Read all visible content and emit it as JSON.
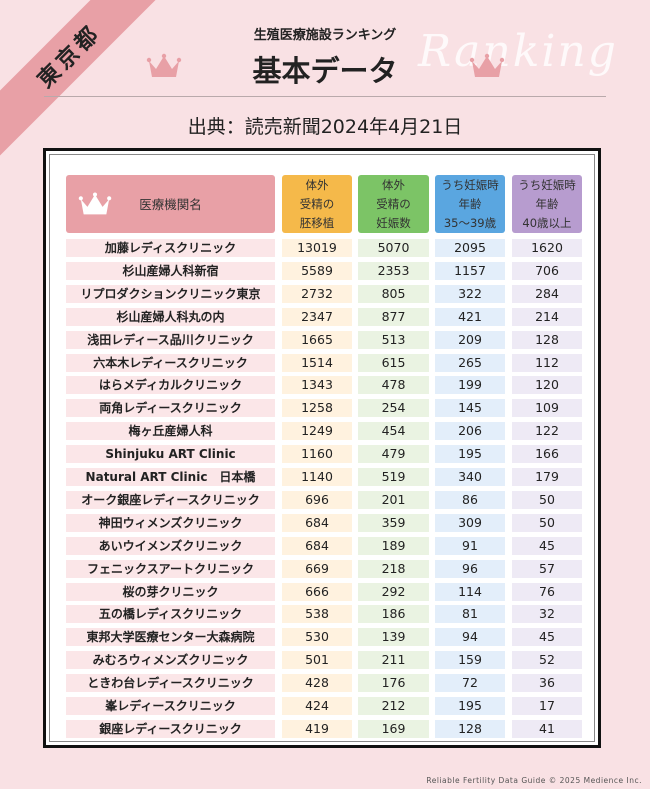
{
  "region_badge": "東京都",
  "watermark": "Ranking",
  "header": {
    "subtitle": "生殖医療施設ランキング",
    "title": "基本データ",
    "source": "出典：読売新聞2024年4月21日"
  },
  "colors": {
    "background": "#f9e1e4",
    "accent_pink": "#e8a0a6",
    "col1": "#f5b94a",
    "col2": "#7cc466",
    "col3": "#5aa6e0",
    "col4": "#b79ccf"
  },
  "table": {
    "columns": [
      {
        "label": "医療機関名",
        "icon": "crown-icon"
      },
      {
        "label": "体外\n受精の\n胚移植"
      },
      {
        "label": "体外\n受精の\n妊娠数"
      },
      {
        "label": "うち妊娠時\n年齢\n35～39歳"
      },
      {
        "label": "うち妊娠時\n年齢\n40歳以上"
      }
    ],
    "rows": [
      [
        "加藤レディスクリニック",
        "13019",
        "5070",
        "2095",
        "1620"
      ],
      [
        "杉山産婦人科新宿",
        "5589",
        "2353",
        "1157",
        "706"
      ],
      [
        "リプロダクションクリニック東京",
        "2732",
        "805",
        "322",
        "284"
      ],
      [
        "杉山産婦人科丸の内",
        "2347",
        "877",
        "421",
        "214"
      ],
      [
        "浅田レディース品川クリニック",
        "1665",
        "513",
        "209",
        "128"
      ],
      [
        "六本木レディースクリニック",
        "1514",
        "615",
        "265",
        "112"
      ],
      [
        "はらメディカルクリニック",
        "1343",
        "478",
        "199",
        "120"
      ],
      [
        "両角レディースクリニック",
        "1258",
        "254",
        "145",
        "109"
      ],
      [
        "梅ヶ丘産婦人科",
        "1249",
        "454",
        "206",
        "122"
      ],
      [
        "Shinjuku ART Clinic",
        "1160",
        "479",
        "195",
        "166"
      ],
      [
        "Natural ART Clinic　日本橋",
        "1140",
        "519",
        "340",
        "179"
      ],
      [
        "オーク銀座レディースクリニック",
        "696",
        "201",
        "86",
        "50"
      ],
      [
        "神田ウィメンズクリニック",
        "684",
        "359",
        "309",
        "50"
      ],
      [
        "あいウイメンズクリニック",
        "684",
        "189",
        "91",
        "45"
      ],
      [
        "フェニックスアートクリニック",
        "669",
        "218",
        "96",
        "57"
      ],
      [
        "桜の芽クリニック",
        "666",
        "292",
        "114",
        "76"
      ],
      [
        "五の橋レディスクリニック",
        "538",
        "186",
        "81",
        "32"
      ],
      [
        "東邦大学医療センター大森病院",
        "530",
        "139",
        "94",
        "45"
      ],
      [
        "みむろウィメンズクリニック",
        "501",
        "211",
        "159",
        "52"
      ],
      [
        "ときわ台レディースクリニック",
        "428",
        "176",
        "72",
        "36"
      ],
      [
        "峯レディースクリニック",
        "424",
        "212",
        "195",
        "17"
      ],
      [
        "銀座レディースクリニック",
        "419",
        "169",
        "128",
        "41"
      ]
    ]
  },
  "footer": "Reliable Fertility Data Guide © 2025 Medience Inc."
}
